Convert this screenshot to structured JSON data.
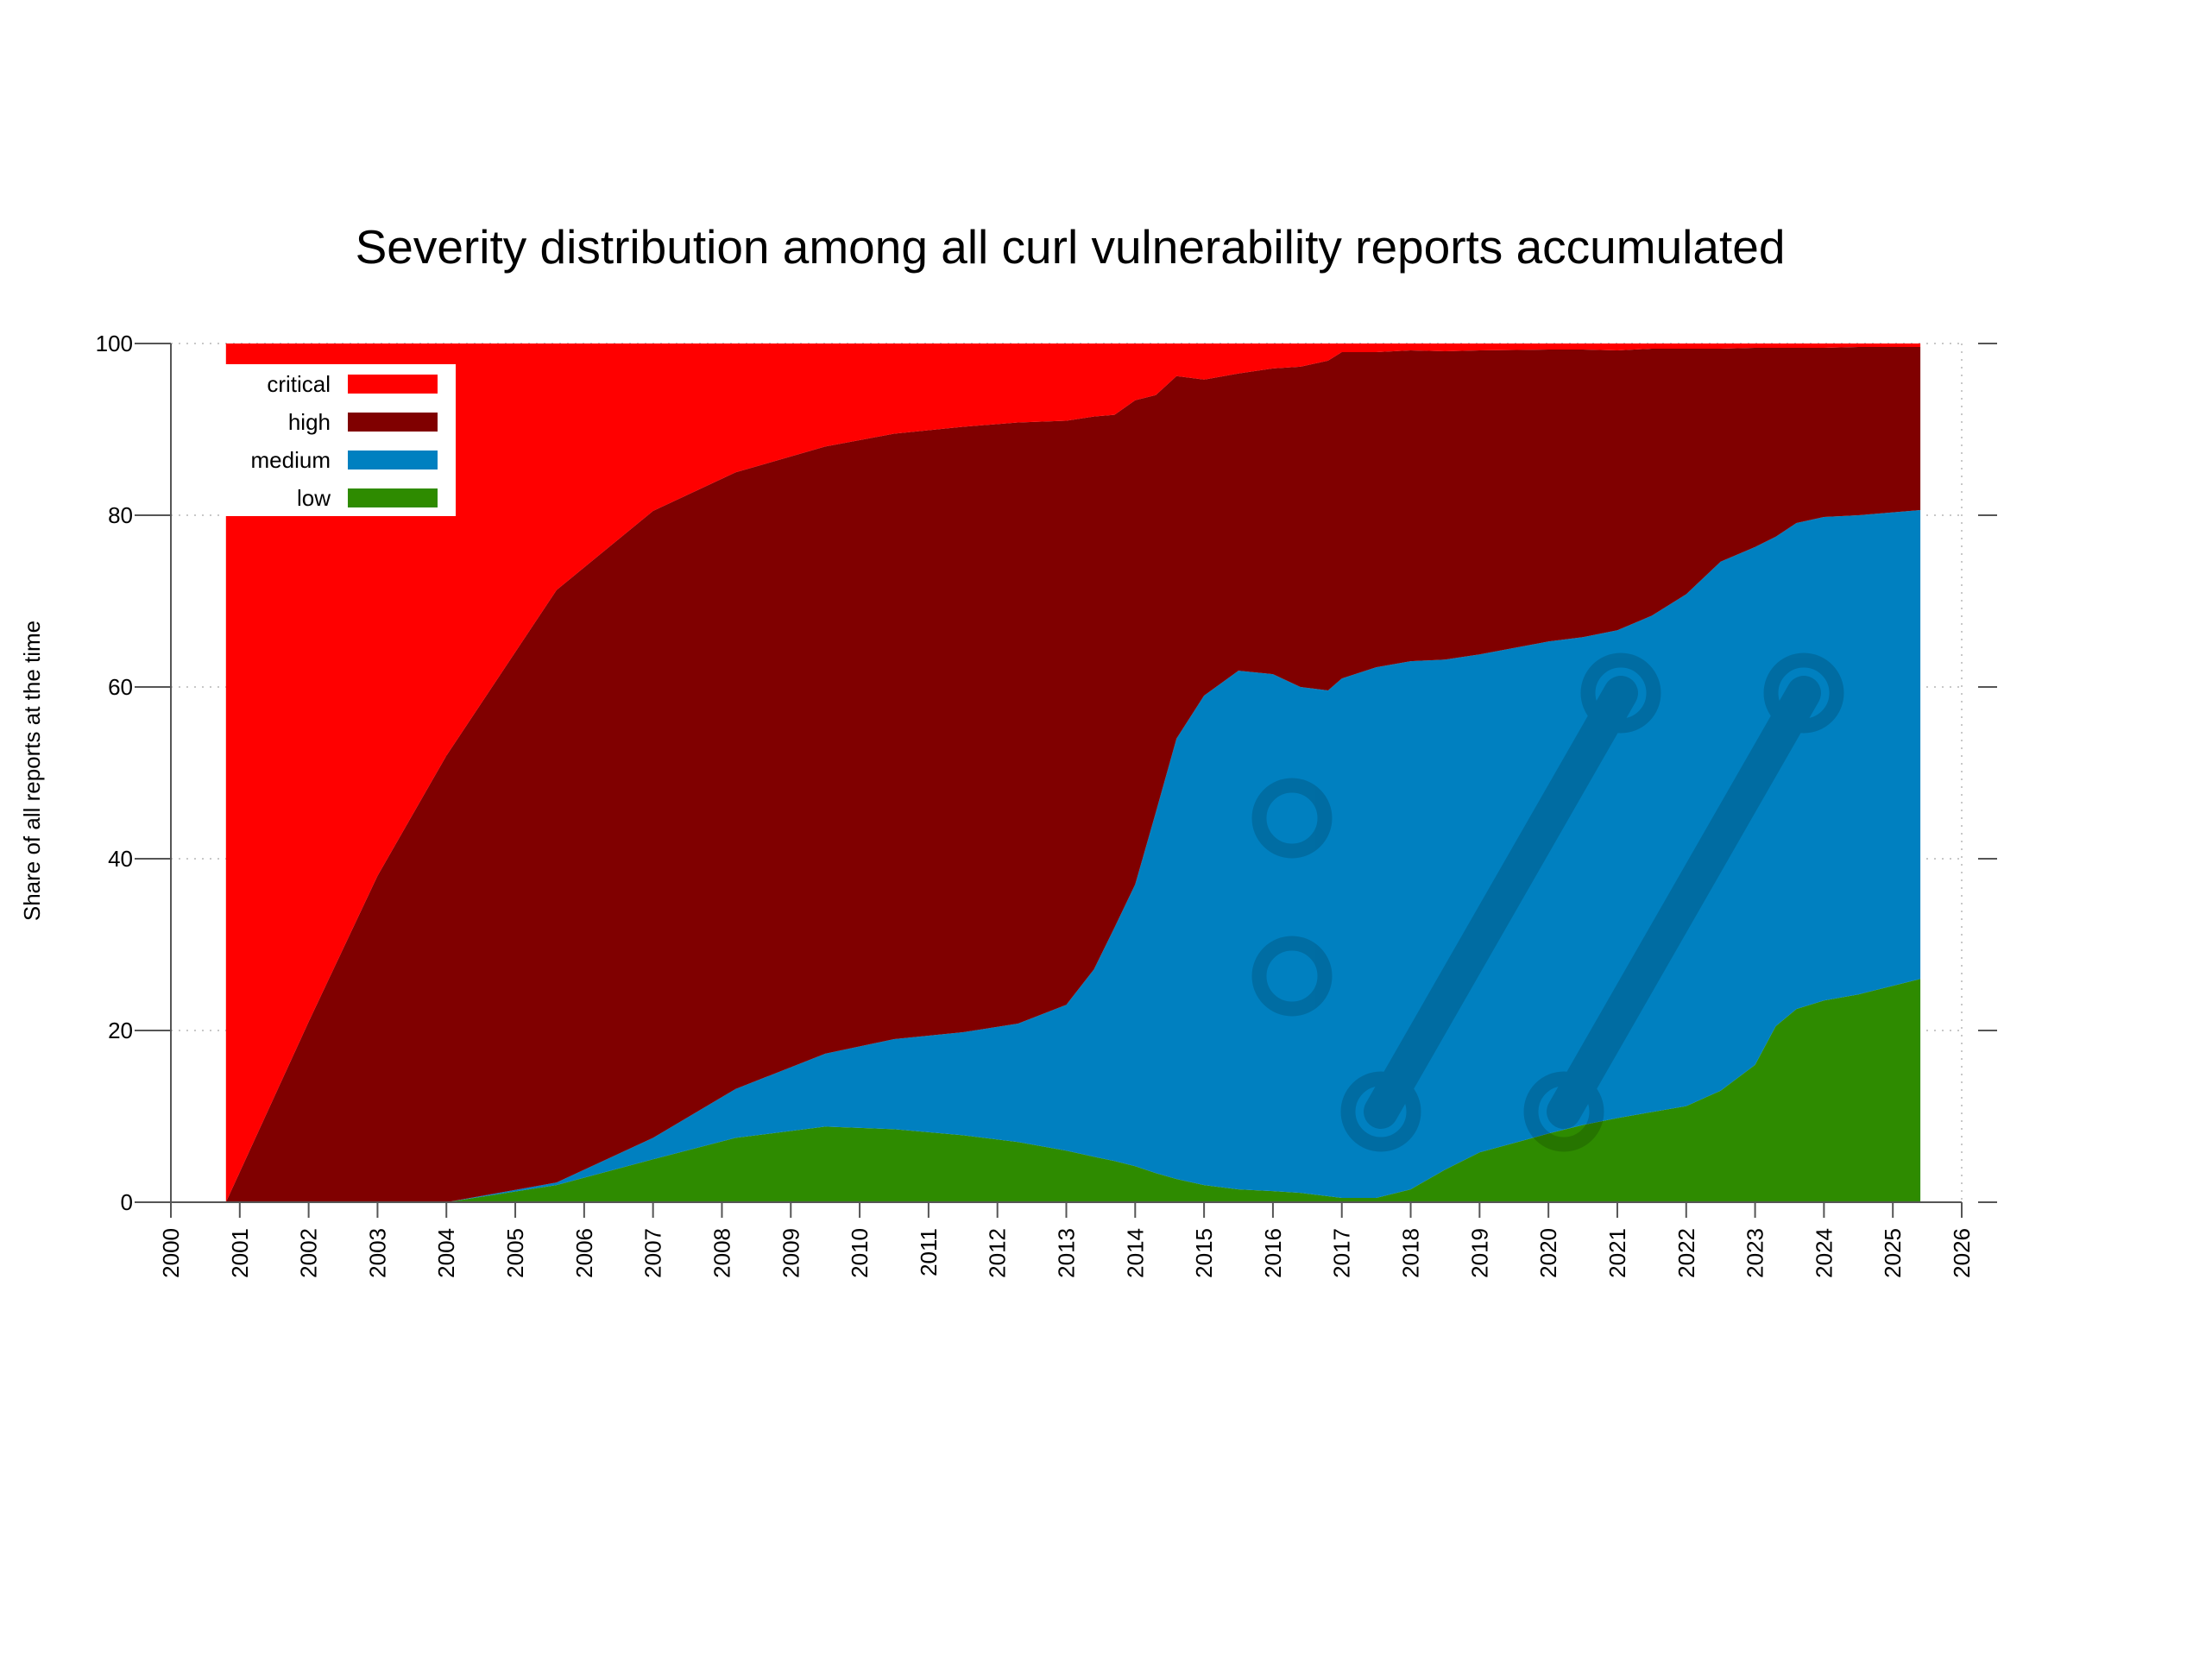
{
  "chart_data": {
    "type": "area",
    "stacked": true,
    "percent": true,
    "title": "Severity distribution among all curl vulnerability reports accumulated",
    "xlabel": "",
    "ylabel": "Share of all reports at the time",
    "xlim": [
      2000,
      2026
    ],
    "ylim": [
      0,
      100
    ],
    "x_ticks": [
      "2000",
      "2001",
      "2002",
      "2003",
      "2004",
      "2005",
      "2006",
      "2007",
      "2008",
      "2009",
      "2010",
      "2011",
      "2012",
      "2013",
      "2014",
      "2015",
      "2016",
      "2017",
      "2018",
      "2019",
      "2020",
      "2021",
      "2022",
      "2023",
      "2024",
      "2025",
      "2026"
    ],
    "y_ticks": [
      "0",
      "20",
      "40",
      "60",
      "80",
      "100"
    ],
    "grid": true,
    "legend_position": "top-left",
    "x": [
      2000.8,
      2002.0,
      2003.0,
      2004.0,
      2005.6,
      2007.0,
      2008.2,
      2009.5,
      2010.5,
      2011.5,
      2012.3,
      2013.0,
      2013.4,
      2013.7,
      2014.0,
      2014.3,
      2014.6,
      2015.0,
      2015.5,
      2016.0,
      2016.4,
      2016.8,
      2017.0,
      2017.5,
      2018.0,
      2018.5,
      2019.0,
      2020.0,
      2020.5,
      2021.0,
      2021.5,
      2022.0,
      2022.5,
      2023.0,
      2023.3,
      2023.6,
      2024.0,
      2024.5,
      2025.4
    ],
    "series": [
      {
        "name": "low",
        "color": "#2e8b00",
        "values": [
          0,
          0,
          0,
          0,
          2,
          5,
          7.5,
          8.8,
          8.5,
          7.8,
          7,
          6,
          5.3,
          4.8,
          4.2,
          3.4,
          2.7,
          2,
          1.5,
          1.3,
          1.1,
          0.7,
          0.5,
          0.5,
          1.5,
          3.8,
          5.8,
          8,
          9,
          9.8,
          10.5,
          11.2,
          13,
          16,
          20.5,
          22.5,
          23.5,
          24.2,
          26
        ]
      },
      {
        "name": "medium",
        "color": "#0080c0",
        "values": [
          0,
          0,
          0,
          0,
          0.3,
          2.5,
          5.7,
          8.5,
          10.5,
          12,
          13.8,
          17,
          21.8,
          27.2,
          32.8,
          42,
          51.3,
          57,
          60.4,
          60.2,
          58.9,
          58.9,
          60.5,
          61.8,
          61.5,
          59.4,
          58,
          57.3,
          56.8,
          56.8,
          57.8,
          59.6,
          61.6,
          60.3,
          57,
          56.6,
          56.3,
          55.8,
          54.6
        ]
      },
      {
        "name": "high",
        "color": "#800000",
        "values": [
          0,
          21,
          38,
          52,
          69,
          73,
          71.8,
          70.7,
          70.5,
          70.5,
          70,
          68,
          64.4,
          59.7,
          56.4,
          48.6,
          42.2,
          36.8,
          34.6,
          35.6,
          37.3,
          38.4,
          38,
          36.7,
          36.2,
          35.9,
          35.4,
          34,
          33.5,
          32.6,
          31.1,
          28.6,
          24.8,
          23.2,
          22,
          20.4,
          19.7,
          19.6,
          19
        ]
      },
      {
        "name": "critical",
        "color": "#ff0000",
        "values": [
          100,
          79,
          62,
          48,
          28.7,
          19.5,
          15,
          12,
          10.5,
          9.7,
          9.2,
          9,
          8.5,
          8.3,
          6.6,
          6,
          3.8,
          4.2,
          3.5,
          2.9,
          2.7,
          2,
          1,
          1,
          0.8,
          0.9,
          0.8,
          0.7,
          0.7,
          0.8,
          0.6,
          0.6,
          0.6,
          0.5,
          0.5,
          0.5,
          0.5,
          0.4,
          0.4
        ]
      }
    ]
  }
}
